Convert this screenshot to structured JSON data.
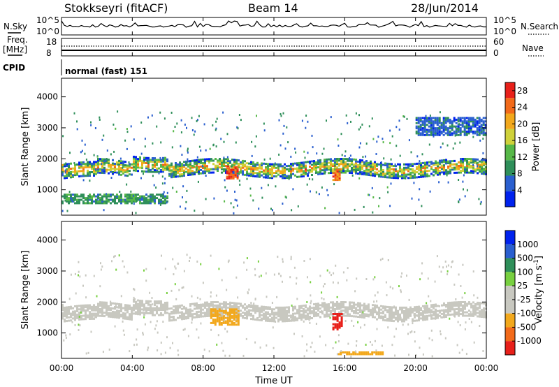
{
  "header": {
    "station": "Stokkseyri (fitACF)",
    "beam": "Beam 14",
    "date": "28/Jun/2014"
  },
  "nsky_panel": {
    "left_label": "N.Sky",
    "left_ticks": [
      "10^5",
      "10^0"
    ],
    "right_ticks": [
      "10^5",
      "10^0"
    ],
    "right_label": "N.Search"
  },
  "freq_panel": {
    "left_label_1": "Freq.",
    "left_label_2": "[MHz]",
    "left_ticks": [
      "18",
      "8"
    ],
    "right_ticks": [
      "60",
      "0"
    ],
    "right_label": "Nave"
  },
  "cpid_panel": {
    "label": "CPID",
    "value": "normal (fast) 151"
  },
  "x_axis": {
    "title": "Time UT",
    "ticks": [
      "00:00",
      "04:00",
      "08:00",
      "12:00",
      "16:00",
      "20:00",
      "00:00"
    ]
  },
  "colors": {
    "power": [
      "#0022ee",
      "#2a5fcf",
      "#2f8f5a",
      "#57b848",
      "#cfd13a",
      "#f2a81c",
      "#f26a1a",
      "#e8201a"
    ],
    "velocity": [
      "#e8201a",
      "#f26a1a",
      "#f2a81c",
      "#c8c8c0",
      "#c8c8c0",
      "#78d040",
      "#2f8f5a",
      "#2a5fcf",
      "#0022ee"
    ]
  },
  "chart_data": [
    {
      "type": "heatmap",
      "name": "power",
      "ylabel": "Slant Range [km]",
      "yticks": [
        1000,
        2000,
        3000,
        4000
      ],
      "ylim": [
        180,
        4600
      ],
      "xlim_hours": [
        0,
        24
      ],
      "colorbar": {
        "label": "Power [dB]",
        "ticks": [
          4,
          8,
          12,
          16,
          20,
          24,
          28
        ],
        "range": [
          0,
          30
        ]
      },
      "bands": [
        {
          "range_km": [
            1500,
            1950
          ],
          "value": 14,
          "hours": [
            0,
            24
          ],
          "note": "main F-region echo band"
        },
        {
          "range_km": [
            1400,
            1750
          ],
          "value": 26,
          "hours": [
            9.3,
            10.0
          ]
        },
        {
          "range_km": [
            1350,
            1700
          ],
          "value": 24,
          "hours": [
            15.3,
            15.7
          ]
        },
        {
          "range_km": [
            600,
            900
          ],
          "value": 10,
          "hours": [
            0,
            6
          ]
        },
        {
          "range_km": [
            2800,
            3400
          ],
          "value": 6,
          "hours": [
            20,
            24
          ]
        }
      ]
    },
    {
      "type": "heatmap",
      "name": "velocity",
      "ylabel": "Slant Range [km]",
      "yticks": [
        1000,
        2000,
        3000,
        4000
      ],
      "ylim": [
        180,
        4600
      ],
      "xlim_hours": [
        0,
        24
      ],
      "colorbar": {
        "label": "Velocity [m s^-1]",
        "ticks": [
          1000,
          500,
          100,
          25,
          -25,
          -100,
          -500,
          -1000
        ]
      },
      "bands": [
        {
          "range_km": [
            1500,
            1950
          ],
          "value": 0,
          "hours": [
            0,
            24
          ],
          "note": "ground scatter band"
        },
        {
          "range_km": [
            1300,
            1800
          ],
          "value": -200,
          "hours": [
            8.4,
            10.0
          ]
        },
        {
          "range_km": [
            1150,
            1650
          ],
          "value": -1000,
          "hours": [
            15.3,
            15.8
          ]
        },
        {
          "range_km": [
            350,
            450
          ],
          "value": -200,
          "hours": [
            15.6,
            18.2
          ]
        }
      ]
    }
  ]
}
